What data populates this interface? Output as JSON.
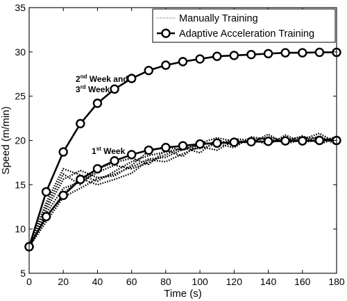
{
  "chart_data": {
    "type": "line",
    "xlabel": "Time (s)",
    "ylabel": "Speed (m/min)",
    "xlim": [
      0,
      180
    ],
    "ylim": [
      5,
      35
    ],
    "xticks": [
      "0",
      "20",
      "40",
      "60",
      "80",
      "100",
      "120",
      "140",
      "160",
      "180"
    ],
    "yticks": [
      "5",
      "10",
      "15",
      "20",
      "25",
      "30",
      "35"
    ],
    "legend_position": "top-right",
    "legend": [
      {
        "label": "Manually Training",
        "style": "dotted-thin"
      },
      {
        "label": "Adaptive Acceleration Training",
        "style": "solid-circle"
      }
    ],
    "annotations": [
      {
        "line1": "2nd Week and",
        "line2": "3rd Week"
      },
      {
        "line1": "1st Week"
      }
    ],
    "series": [
      {
        "label": "2nd Week and 3rd Week",
        "style": "solid-circle",
        "x": [
          0,
          10,
          20,
          30,
          40,
          50,
          60,
          70,
          80,
          90,
          100,
          110,
          120,
          130,
          140,
          150,
          160,
          170,
          180
        ],
        "y": [
          8,
          14.2,
          18.7,
          21.9,
          24.2,
          25.8,
          27.0,
          27.9,
          28.5,
          28.9,
          29.2,
          29.5,
          29.6,
          29.7,
          29.8,
          29.9,
          29.9,
          29.95,
          29.95
        ]
      },
      {
        "label": "1st Week",
        "style": "solid-circle",
        "x": [
          0,
          10,
          20,
          30,
          40,
          50,
          60,
          70,
          80,
          90,
          100,
          110,
          120,
          130,
          140,
          150,
          160,
          170,
          180
        ],
        "y": [
          8,
          11.4,
          13.8,
          15.6,
          16.8,
          17.7,
          18.4,
          18.9,
          19.2,
          19.4,
          19.6,
          19.7,
          19.8,
          19.85,
          19.9,
          19.95,
          19.95,
          20.0,
          20.0
        ]
      },
      {
        "style": "dotted",
        "x": [
          0,
          10,
          20,
          30,
          40,
          50,
          60,
          70,
          80,
          90,
          100,
          110,
          120,
          130,
          140,
          150,
          160,
          170,
          180
        ],
        "y": [
          8,
          13.0,
          16.8,
          16.1,
          15.4,
          16.5,
          17.6,
          18.3,
          18.7,
          19.1,
          19.5,
          19.8,
          19.6,
          20.1,
          20.3,
          20.0,
          20.4,
          20.2,
          20.1
        ]
      },
      {
        "style": "dotted",
        "x": [
          0,
          10,
          20,
          30,
          40,
          50,
          60,
          70,
          80,
          90,
          100,
          110,
          120,
          130,
          140,
          150,
          160,
          170,
          180
        ],
        "y": [
          8,
          12.2,
          15.6,
          16.6,
          15.8,
          16.0,
          17.2,
          18.8,
          19.3,
          18.9,
          19.7,
          20.3,
          19.9,
          19.7,
          20.7,
          19.6,
          20.1,
          20.8,
          19.7
        ]
      },
      {
        "style": "dotted",
        "x": [
          0,
          10,
          20,
          30,
          40,
          50,
          60,
          70,
          80,
          90,
          100,
          110,
          120,
          130,
          140,
          150,
          160,
          170,
          180
        ],
        "y": [
          8,
          11.8,
          14.6,
          15.3,
          16.4,
          17.2,
          16.8,
          17.5,
          18.4,
          19.2,
          18.6,
          20.1,
          19.4,
          20.2,
          19.5,
          20.6,
          19.8,
          20.0,
          20.3
        ]
      },
      {
        "style": "dotted",
        "x": [
          0,
          10,
          20,
          30,
          40,
          50,
          60,
          70,
          80,
          90,
          100,
          110,
          120,
          130,
          140,
          150,
          160,
          170,
          180
        ],
        "y": [
          8,
          11.2,
          14.0,
          15.7,
          15.0,
          15.6,
          16.3,
          17.8,
          17.6,
          18.5,
          19.3,
          18.9,
          20.0,
          19.8,
          20.4,
          19.9,
          20.5,
          19.6,
          20.2
        ]
      },
      {
        "style": "dotted",
        "x": [
          0,
          10,
          20,
          30,
          40,
          50,
          60,
          70,
          80,
          90,
          100,
          110,
          120,
          130,
          140,
          150,
          160,
          170,
          180
        ],
        "y": [
          8,
          12.6,
          16.2,
          15.0,
          16.8,
          17.5,
          18.0,
          17.3,
          18.9,
          18.2,
          19.8,
          19.5,
          20.2,
          20.0,
          19.7,
          20.3,
          19.8,
          20.5,
          19.5
        ]
      },
      {
        "style": "dotted",
        "x": [
          0,
          10,
          20,
          30,
          40,
          50,
          60,
          70,
          80,
          90,
          100,
          110,
          120,
          130,
          140,
          150,
          160,
          170,
          180
        ],
        "y": [
          8,
          10.8,
          13.6,
          14.6,
          15.7,
          16.2,
          17.0,
          17.9,
          18.1,
          19.0,
          19.1,
          19.6,
          19.2,
          20.4,
          20.1,
          19.8,
          20.2,
          19.9,
          20.4
        ]
      }
    ]
  }
}
